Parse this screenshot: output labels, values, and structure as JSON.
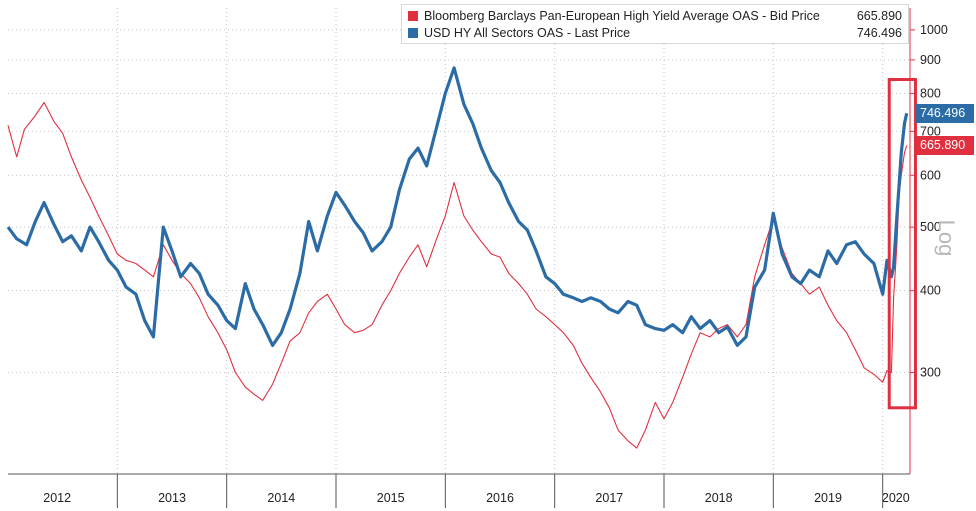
{
  "chart_data": {
    "type": "line",
    "yscale": "log",
    "ylim": [
      210,
      1080
    ],
    "y_ticks": [
      300,
      400,
      500,
      600,
      700,
      800,
      900,
      1000
    ],
    "y_axis_label": "Log",
    "x_categories": [
      "2012",
      "2013",
      "2014",
      "2015",
      "2016",
      "2017",
      "2018",
      "2019",
      "2020"
    ],
    "x_range": [
      2012.0,
      2020.25
    ],
    "series": [
      {
        "name": "Bloomberg Barclays Pan-European High Yield Average OAS - Bid Price",
        "last_value": "665.890",
        "color": "#e0303f",
        "points": [
          [
            2012.0,
            715
          ],
          [
            2012.08,
            640
          ],
          [
            2012.15,
            705
          ],
          [
            2012.25,
            740
          ],
          [
            2012.33,
            775
          ],
          [
            2012.42,
            725
          ],
          [
            2012.5,
            695
          ],
          [
            2012.58,
            640
          ],
          [
            2012.67,
            590
          ],
          [
            2012.75,
            555
          ],
          [
            2012.83,
            520
          ],
          [
            2012.92,
            485
          ],
          [
            2013.0,
            455
          ],
          [
            2013.08,
            445
          ],
          [
            2013.17,
            440
          ],
          [
            2013.25,
            430
          ],
          [
            2013.33,
            420
          ],
          [
            2013.42,
            470
          ],
          [
            2013.5,
            445
          ],
          [
            2013.58,
            425
          ],
          [
            2013.67,
            410
          ],
          [
            2013.75,
            390
          ],
          [
            2013.83,
            365
          ],
          [
            2013.92,
            345
          ],
          [
            2014.0,
            325
          ],
          [
            2014.08,
            300
          ],
          [
            2014.17,
            285
          ],
          [
            2014.25,
            278
          ],
          [
            2014.33,
            272
          ],
          [
            2014.42,
            288
          ],
          [
            2014.5,
            310
          ],
          [
            2014.58,
            335
          ],
          [
            2014.67,
            345
          ],
          [
            2014.75,
            370
          ],
          [
            2014.83,
            385
          ],
          [
            2014.92,
            395
          ],
          [
            2015.0,
            375
          ],
          [
            2015.08,
            355
          ],
          [
            2015.17,
            345
          ],
          [
            2015.25,
            348
          ],
          [
            2015.33,
            355
          ],
          [
            2015.42,
            380
          ],
          [
            2015.5,
            400
          ],
          [
            2015.58,
            425
          ],
          [
            2015.67,
            450
          ],
          [
            2015.75,
            470
          ],
          [
            2015.83,
            435
          ],
          [
            2015.92,
            480
          ],
          [
            2016.0,
            520
          ],
          [
            2016.08,
            585
          ],
          [
            2016.17,
            520
          ],
          [
            2016.25,
            495
          ],
          [
            2016.33,
            475
          ],
          [
            2016.42,
            455
          ],
          [
            2016.5,
            450
          ],
          [
            2016.58,
            425
          ],
          [
            2016.67,
            410
          ],
          [
            2016.75,
            395
          ],
          [
            2016.83,
            375
          ],
          [
            2016.92,
            365
          ],
          [
            2017.0,
            355
          ],
          [
            2017.08,
            345
          ],
          [
            2017.17,
            330
          ],
          [
            2017.25,
            310
          ],
          [
            2017.33,
            295
          ],
          [
            2017.42,
            280
          ],
          [
            2017.5,
            265
          ],
          [
            2017.58,
            245
          ],
          [
            2017.67,
            236
          ],
          [
            2017.75,
            230
          ],
          [
            2017.83,
            245
          ],
          [
            2017.92,
            270
          ],
          [
            2018.0,
            255
          ],
          [
            2018.08,
            270
          ],
          [
            2018.17,
            295
          ],
          [
            2018.25,
            320
          ],
          [
            2018.33,
            345
          ],
          [
            2018.42,
            340
          ],
          [
            2018.5,
            350
          ],
          [
            2018.58,
            355
          ],
          [
            2018.67,
            340
          ],
          [
            2018.75,
            355
          ],
          [
            2018.83,
            420
          ],
          [
            2018.92,
            470
          ],
          [
            2019.0,
            515
          ],
          [
            2019.08,
            465
          ],
          [
            2019.17,
            425
          ],
          [
            2019.25,
            410
          ],
          [
            2019.33,
            395
          ],
          [
            2019.42,
            405
          ],
          [
            2019.5,
            380
          ],
          [
            2019.58,
            360
          ],
          [
            2019.67,
            345
          ],
          [
            2019.75,
            325
          ],
          [
            2019.83,
            305
          ],
          [
            2019.92,
            298
          ],
          [
            2020.0,
            290
          ],
          [
            2020.04,
            302
          ],
          [
            2020.08,
            300
          ],
          [
            2020.1,
            390
          ],
          [
            2020.13,
            470
          ],
          [
            2020.15,
            560
          ],
          [
            2020.17,
            600
          ],
          [
            2020.2,
            650
          ],
          [
            2020.22,
            666
          ]
        ]
      },
      {
        "name": "USD HY All Sectors OAS - Last Price",
        "last_value": "746.496",
        "color": "#2b6ca6",
        "points": [
          [
            2012.0,
            500
          ],
          [
            2012.08,
            480
          ],
          [
            2012.17,
            470
          ],
          [
            2012.25,
            510
          ],
          [
            2012.33,
            545
          ],
          [
            2012.42,
            505
          ],
          [
            2012.5,
            475
          ],
          [
            2012.58,
            485
          ],
          [
            2012.67,
            460
          ],
          [
            2012.75,
            500
          ],
          [
            2012.83,
            475
          ],
          [
            2012.92,
            445
          ],
          [
            2013.0,
            430
          ],
          [
            2013.08,
            405
          ],
          [
            2013.17,
            395
          ],
          [
            2013.25,
            360
          ],
          [
            2013.33,
            340
          ],
          [
            2013.42,
            500
          ],
          [
            2013.5,
            460
          ],
          [
            2013.58,
            420
          ],
          [
            2013.67,
            440
          ],
          [
            2013.75,
            425
          ],
          [
            2013.83,
            395
          ],
          [
            2013.92,
            380
          ],
          [
            2014.0,
            360
          ],
          [
            2014.08,
            350
          ],
          [
            2014.17,
            410
          ],
          [
            2014.25,
            375
          ],
          [
            2014.33,
            355
          ],
          [
            2014.42,
            330
          ],
          [
            2014.5,
            345
          ],
          [
            2014.58,
            375
          ],
          [
            2014.67,
            425
          ],
          [
            2014.75,
            510
          ],
          [
            2014.83,
            460
          ],
          [
            2014.92,
            520
          ],
          [
            2015.0,
            565
          ],
          [
            2015.08,
            540
          ],
          [
            2015.17,
            510
          ],
          [
            2015.25,
            490
          ],
          [
            2015.33,
            460
          ],
          [
            2015.42,
            475
          ],
          [
            2015.5,
            500
          ],
          [
            2015.58,
            570
          ],
          [
            2015.67,
            635
          ],
          [
            2015.75,
            660
          ],
          [
            2015.83,
            620
          ],
          [
            2015.92,
            710
          ],
          [
            2016.0,
            800
          ],
          [
            2016.08,
            875
          ],
          [
            2016.17,
            770
          ],
          [
            2016.25,
            720
          ],
          [
            2016.33,
            660
          ],
          [
            2016.42,
            610
          ],
          [
            2016.5,
            585
          ],
          [
            2016.58,
            545
          ],
          [
            2016.67,
            510
          ],
          [
            2016.75,
            495
          ],
          [
            2016.83,
            460
          ],
          [
            2016.92,
            420
          ],
          [
            2017.0,
            410
          ],
          [
            2017.08,
            395
          ],
          [
            2017.17,
            390
          ],
          [
            2017.25,
            385
          ],
          [
            2017.33,
            390
          ],
          [
            2017.42,
            385
          ],
          [
            2017.5,
            375
          ],
          [
            2017.58,
            370
          ],
          [
            2017.67,
            385
          ],
          [
            2017.75,
            380
          ],
          [
            2017.83,
            355
          ],
          [
            2017.92,
            350
          ],
          [
            2018.0,
            348
          ],
          [
            2018.08,
            355
          ],
          [
            2018.17,
            345
          ],
          [
            2018.25,
            365
          ],
          [
            2018.33,
            350
          ],
          [
            2018.42,
            360
          ],
          [
            2018.5,
            345
          ],
          [
            2018.58,
            352
          ],
          [
            2018.67,
            330
          ],
          [
            2018.75,
            340
          ],
          [
            2018.83,
            405
          ],
          [
            2018.92,
            430
          ],
          [
            2019.0,
            525
          ],
          [
            2019.08,
            455
          ],
          [
            2019.17,
            420
          ],
          [
            2019.25,
            410
          ],
          [
            2019.33,
            430
          ],
          [
            2019.42,
            420
          ],
          [
            2019.5,
            460
          ],
          [
            2019.58,
            440
          ],
          [
            2019.67,
            470
          ],
          [
            2019.75,
            475
          ],
          [
            2019.83,
            455
          ],
          [
            2019.92,
            440
          ],
          [
            2020.0,
            395
          ],
          [
            2020.04,
            445
          ],
          [
            2020.08,
            420
          ],
          [
            2020.1,
            435
          ],
          [
            2020.13,
            520
          ],
          [
            2020.15,
            580
          ],
          [
            2020.17,
            650
          ],
          [
            2020.2,
            720
          ],
          [
            2020.22,
            746
          ]
        ]
      }
    ],
    "highlight": {
      "x_range": [
        2020.06,
        2020.3
      ],
      "y_range": [
        265,
        840
      ],
      "color": "#e0303f"
    }
  }
}
